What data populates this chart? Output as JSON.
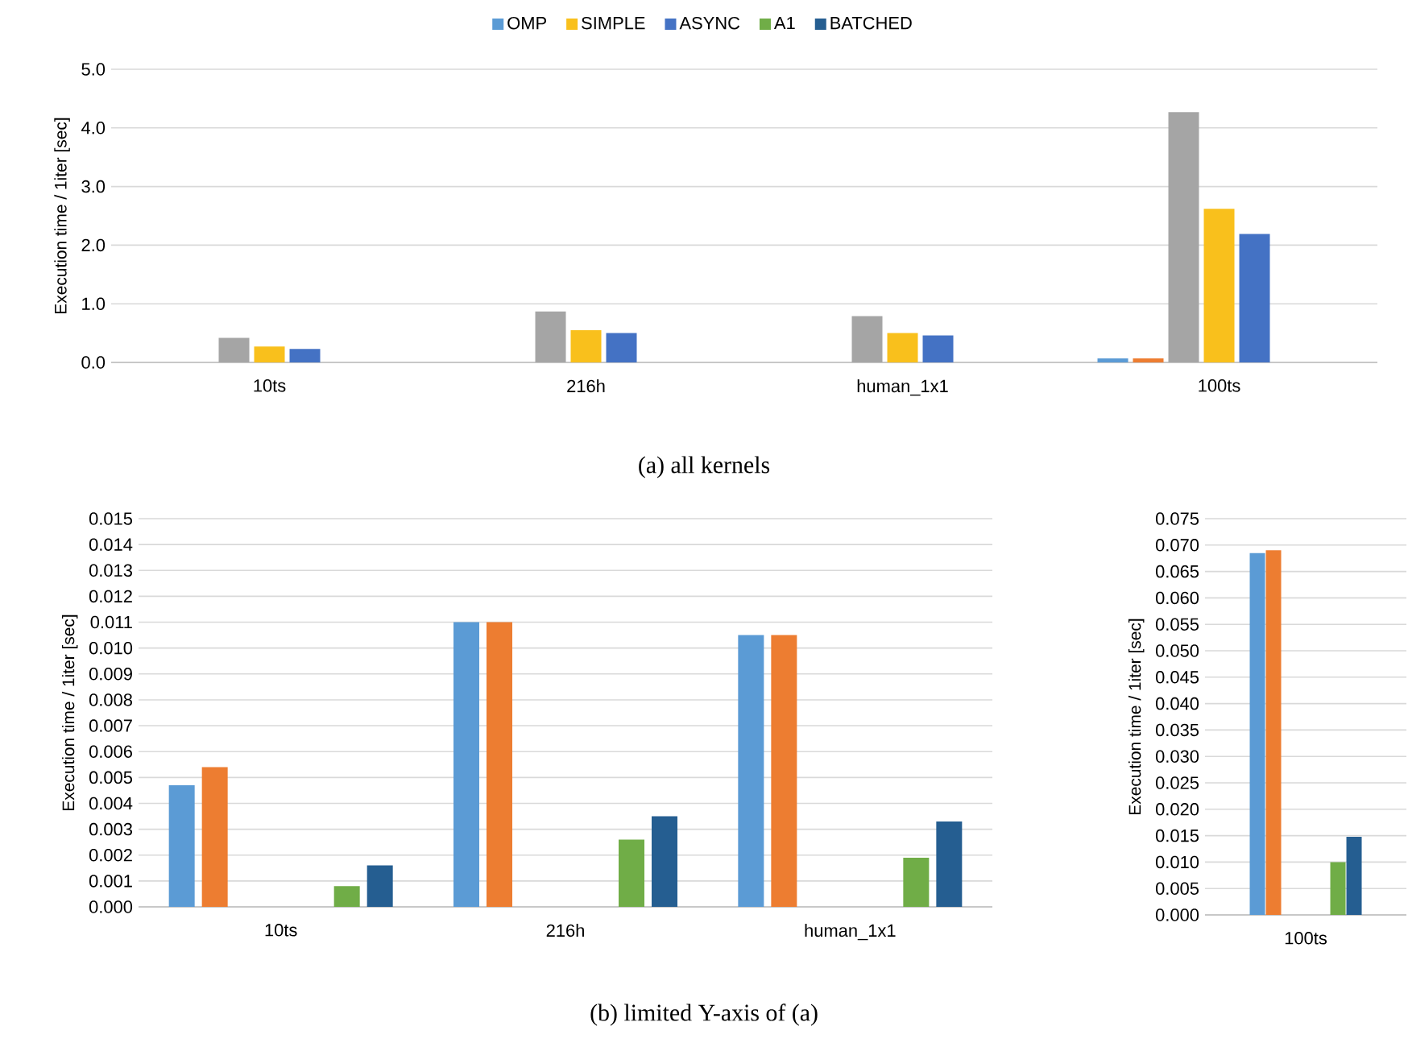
{
  "chart_data": [
    {
      "type": "bar",
      "categories": [
        "10ts",
        "216h",
        "human_1x1",
        "100ts"
      ],
      "ylabel": "Execution time / 1iter [sec]",
      "grid": "y",
      "legend": "top",
      "ylim": [
        0,
        5
      ],
      "yticks": [
        {
          "value": 0,
          "label": "0.0"
        },
        {
          "value": 1,
          "label": "1.0"
        },
        {
          "value": 2,
          "label": "2.0"
        },
        {
          "value": 3,
          "label": "3.0"
        },
        {
          "value": 4,
          "label": "4.0"
        },
        {
          "value": 5,
          "label": "5.0"
        }
      ],
      "series": [
        {
          "name": "OMP",
          "color": "#5b9bd5",
          "values": [
            0,
            0,
            0,
            0.07
          ]
        },
        {
          "color": "#ed7d31",
          "values": [
            0,
            0,
            0,
            0.07
          ]
        },
        {
          "color": "#a5a5a5",
          "values": [
            0.42,
            0.87,
            0.79,
            4.27
          ]
        },
        {
          "name": "SIMPLE",
          "color": "#f9c01c",
          "values": [
            0.27,
            0.55,
            0.5,
            2.62
          ]
        },
        {
          "name": "ASYNC",
          "color": "#4472c4",
          "values": [
            0.23,
            0.5,
            0.46,
            2.19
          ]
        },
        {
          "name": "A1",
          "color": "#70ad47",
          "values": [
            0,
            0,
            0,
            0
          ]
        },
        {
          "name": "BATCHED",
          "color": "#255e91",
          "values": [
            0,
            0,
            0,
            0
          ]
        }
      ],
      "annotations": [
        "(a) all kernels"
      ]
    },
    {
      "type": "bar",
      "categories": [
        "10ts",
        "216h",
        "human_1x1"
      ],
      "ylabel": "Execution time / 1iter [sec]",
      "grid": "y",
      "ylim": [
        0,
        0.015
      ],
      "yticks": [
        {
          "value": 0,
          "label": "0.000"
        },
        {
          "value": 0.001,
          "label": "0.001"
        },
        {
          "value": 0.002,
          "label": "0.002"
        },
        {
          "value": 0.003,
          "label": "0.003"
        },
        {
          "value": 0.004,
          "label": "0.004"
        },
        {
          "value": 0.005,
          "label": "0.005"
        },
        {
          "value": 0.006,
          "label": "0.006"
        },
        {
          "value": 0.007,
          "label": "0.007"
        },
        {
          "value": 0.008,
          "label": "0.008"
        },
        {
          "value": 0.009,
          "label": "0.009"
        },
        {
          "value": 0.01,
          "label": "0.010"
        },
        {
          "value": 0.011,
          "label": "0.011"
        },
        {
          "value": 0.012,
          "label": "0.012"
        },
        {
          "value": 0.013,
          "label": "0.013"
        },
        {
          "value": 0.014,
          "label": "0.014"
        },
        {
          "value": 0.015,
          "label": "0.015"
        }
      ],
      "series": [
        {
          "color": "#5b9bd5",
          "values": [
            0.0047,
            0.011,
            0.0105
          ]
        },
        {
          "color": "#ed7d31",
          "values": [
            0.0054,
            0.011,
            0.0105
          ]
        },
        {
          "color": "#a5a5a5",
          "values": [
            null,
            null,
            null
          ]
        },
        {
          "color": "#f9c01c",
          "values": [
            null,
            null,
            null
          ]
        },
        {
          "color": "#4472c4",
          "values": [
            null,
            null,
            null
          ]
        },
        {
          "color": "#70ad47",
          "values": [
            0.0008,
            0.0026,
            0.0019
          ]
        },
        {
          "color": "#255e91",
          "values": [
            0.0016,
            0.0035,
            0.0033
          ]
        }
      ],
      "annotations": [
        "(b) limited Y-axis of (a)"
      ]
    },
    {
      "type": "bar",
      "categories": [
        "100ts"
      ],
      "ylabel": "Execution time / 1iter [sec]",
      "grid": "y",
      "ylim": [
        0,
        0.075
      ],
      "yticks": [
        {
          "value": 0,
          "label": "0.000"
        },
        {
          "value": 0.005,
          "label": "0.005"
        },
        {
          "value": 0.01,
          "label": "0.010"
        },
        {
          "value": 0.015,
          "label": "0.015"
        },
        {
          "value": 0.02,
          "label": "0.020"
        },
        {
          "value": 0.025,
          "label": "0.025"
        },
        {
          "value": 0.03,
          "label": "0.030"
        },
        {
          "value": 0.035,
          "label": "0.035"
        },
        {
          "value": 0.04,
          "label": "0.040"
        },
        {
          "value": 0.045,
          "label": "0.045"
        },
        {
          "value": 0.05,
          "label": "0.050"
        },
        {
          "value": 0.055,
          "label": "0.055"
        },
        {
          "value": 0.06,
          "label": "0.060"
        },
        {
          "value": 0.065,
          "label": "0.065"
        },
        {
          "value": 0.07,
          "label": "0.070"
        },
        {
          "value": 0.075,
          "label": "0.075"
        }
      ],
      "series": [
        {
          "color": "#5b9bd5",
          "values": [
            0.0685
          ]
        },
        {
          "color": "#ed7d31",
          "values": [
            0.069
          ]
        },
        {
          "color": "#a5a5a5",
          "values": [
            null
          ]
        },
        {
          "color": "#f9c01c",
          "values": [
            null
          ]
        },
        {
          "color": "#4472c4",
          "values": [
            null
          ]
        },
        {
          "color": "#70ad47",
          "values": [
            0.01
          ]
        },
        {
          "color": "#255e91",
          "values": [
            0.0148
          ]
        }
      ]
    }
  ]
}
